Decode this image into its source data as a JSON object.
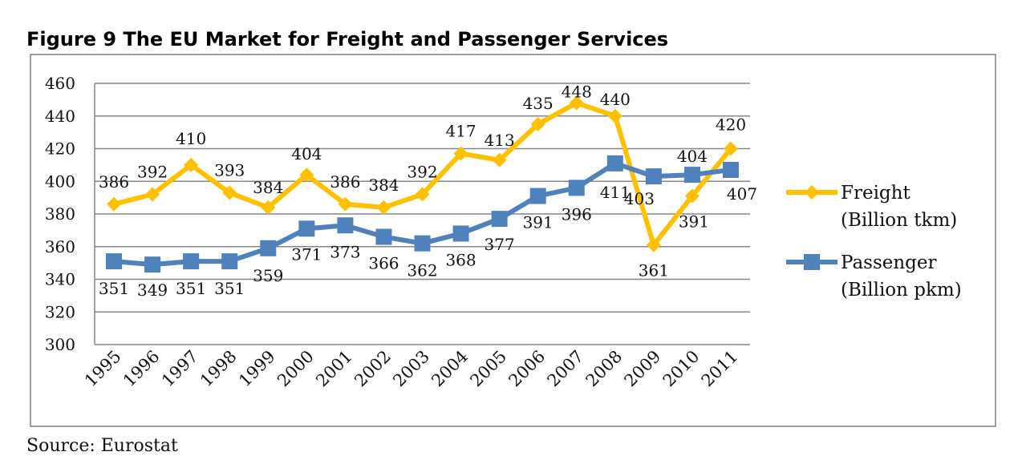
{
  "chart_data": {
    "type": "line",
    "title": "Figure 9 The EU Market for Freight and Passenger Services",
    "source": "Source: Eurostat",
    "categories": [
      "1995",
      "1996",
      "1997",
      "1998",
      "1999",
      "2000",
      "2001",
      "2002",
      "2003",
      "2004",
      "2005",
      "2006",
      "2007",
      "2008",
      "2009",
      "2010",
      "2011"
    ],
    "ylim": [
      300,
      460
    ],
    "yticks": [
      "300",
      "320",
      "340",
      "360",
      "380",
      "400",
      "420",
      "440",
      "460"
    ],
    "grid": true,
    "legend_position": "right",
    "series": [
      {
        "name": "Freight",
        "name_line2": "(Billion tkm)",
        "color": "#FFC000",
        "marker": "diamond",
        "values": [
          386,
          392,
          410,
          393,
          384,
          404,
          386,
          384,
          392,
          417,
          413,
          435,
          448,
          440,
          361,
          391,
          420
        ]
      },
      {
        "name": "Passenger",
        "name_line2": "(Billion pkm)",
        "color": "#4F81BD",
        "marker": "square",
        "values": [
          351,
          349,
          351,
          351,
          359,
          371,
          373,
          366,
          362,
          368,
          377,
          391,
          396,
          411,
          403,
          404,
          407
        ]
      }
    ]
  }
}
